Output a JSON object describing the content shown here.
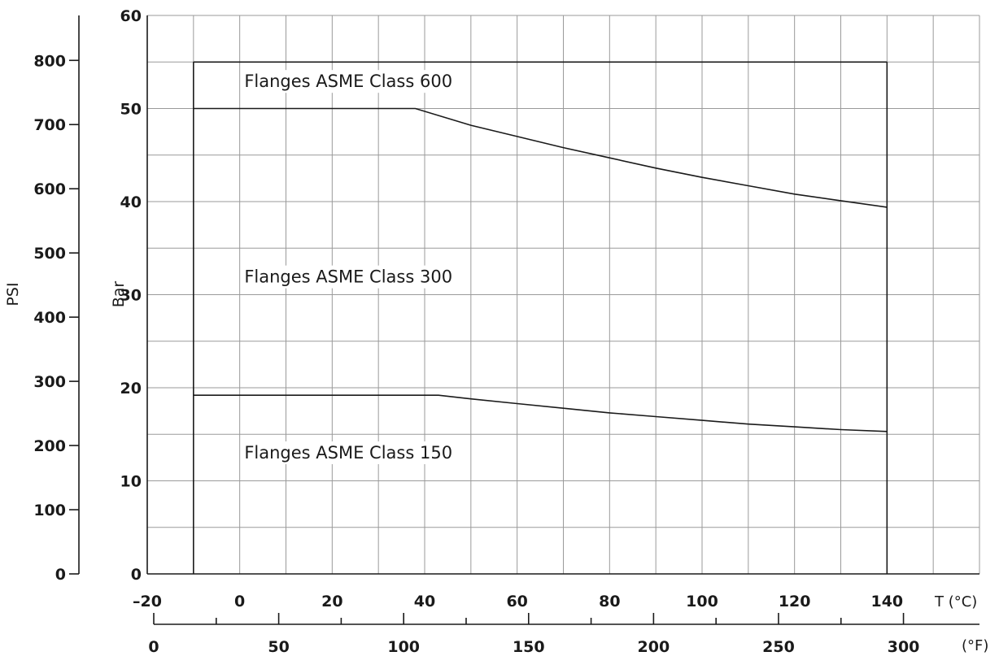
{
  "chart_data": {
    "type": "line",
    "title": "",
    "x_axis": {
      "label": "T (°C)",
      "range": [
        -20,
        160
      ],
      "ticks": [
        "–20",
        "0",
        "20",
        "40",
        "60",
        "80",
        "100",
        "120",
        "140"
      ],
      "tick_values": [
        -20,
        0,
        20,
        40,
        60,
        80,
        100,
        120,
        140
      ],
      "grid_step": 10
    },
    "x2_axis": {
      "label": "(°F)",
      "range": [
        0,
        320
      ],
      "ticks": [
        "0",
        "50",
        "100",
        "150",
        "200",
        "250",
        "300"
      ],
      "tick_values": [
        0,
        50,
        100,
        150,
        200,
        250,
        300
      ]
    },
    "y_axis": {
      "label": "Bar",
      "range": [
        0,
        60
      ],
      "ticks": [
        "0",
        "10",
        "20",
        "30",
        "40",
        "50",
        "60"
      ],
      "tick_values": [
        0,
        10,
        20,
        30,
        40,
        50,
        60
      ],
      "grid_step": 5
    },
    "y2_axis": {
      "label": "PSI",
      "range": [
        0,
        870
      ],
      "ticks": [
        "0",
        "100",
        "200",
        "300",
        "400",
        "500",
        "600",
        "700",
        "800"
      ],
      "tick_values": [
        0,
        100,
        200,
        300,
        400,
        500,
        600,
        700,
        800
      ]
    },
    "grid": true,
    "series": [
      {
        "name": "Flanges ASME Class 600",
        "x": [
          -10,
          140
        ],
        "y": [
          55,
          55
        ]
      },
      {
        "name": "Flanges ASME Class 300",
        "x": [
          -10,
          38,
          50,
          60,
          70,
          80,
          90,
          100,
          110,
          120,
          130,
          140
        ],
        "y": [
          50,
          50,
          48.2,
          47.0,
          45.8,
          44.7,
          43.6,
          42.6,
          41.7,
          40.8,
          40.1,
          39.4
        ]
      },
      {
        "name": "Flanges ASME Class 150",
        "x": [
          -10,
          43,
          50,
          60,
          70,
          80,
          90,
          100,
          110,
          120,
          130,
          140
        ],
        "y": [
          19.2,
          19.2,
          18.8,
          18.3,
          17.8,
          17.3,
          16.9,
          16.5,
          16.1,
          15.8,
          15.5,
          15.3
        ]
      }
    ],
    "boundary": {
      "x_min": -10,
      "x_max": 140
    },
    "annotations": [
      {
        "text": "Flanges ASME Class 600",
        "x": 1,
        "y": 52.3
      },
      {
        "text": "Flanges ASME Class 300",
        "x": 1,
        "y": 31.3
      },
      {
        "text": "Flanges ASME Class 150",
        "x": 1,
        "y": 12.4
      }
    ]
  }
}
